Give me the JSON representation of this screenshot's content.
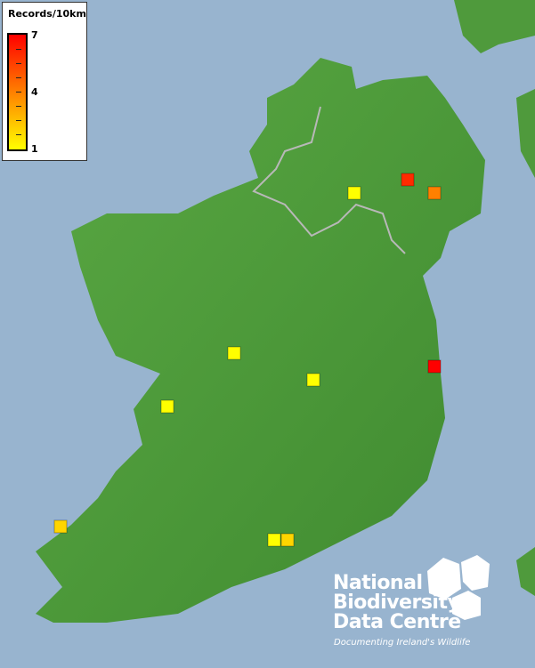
{
  "legend": {
    "title": "Records/10km",
    "max_label": "7",
    "mid_label": "4",
    "min_label": "1",
    "color_low": "#ffff00",
    "color_high": "#ff0000"
  },
  "map": {
    "land_color": "#4f9a3c",
    "sea_color": "#98b4cf",
    "records": [
      1,
      6,
      4,
      1,
      1,
      1,
      7,
      2,
      1,
      2
    ]
  },
  "logo": {
    "line1": "National",
    "line2": "Biodiversity",
    "line3": "Data Centre",
    "tagline": "Documenting Ireland's Wildlife"
  }
}
